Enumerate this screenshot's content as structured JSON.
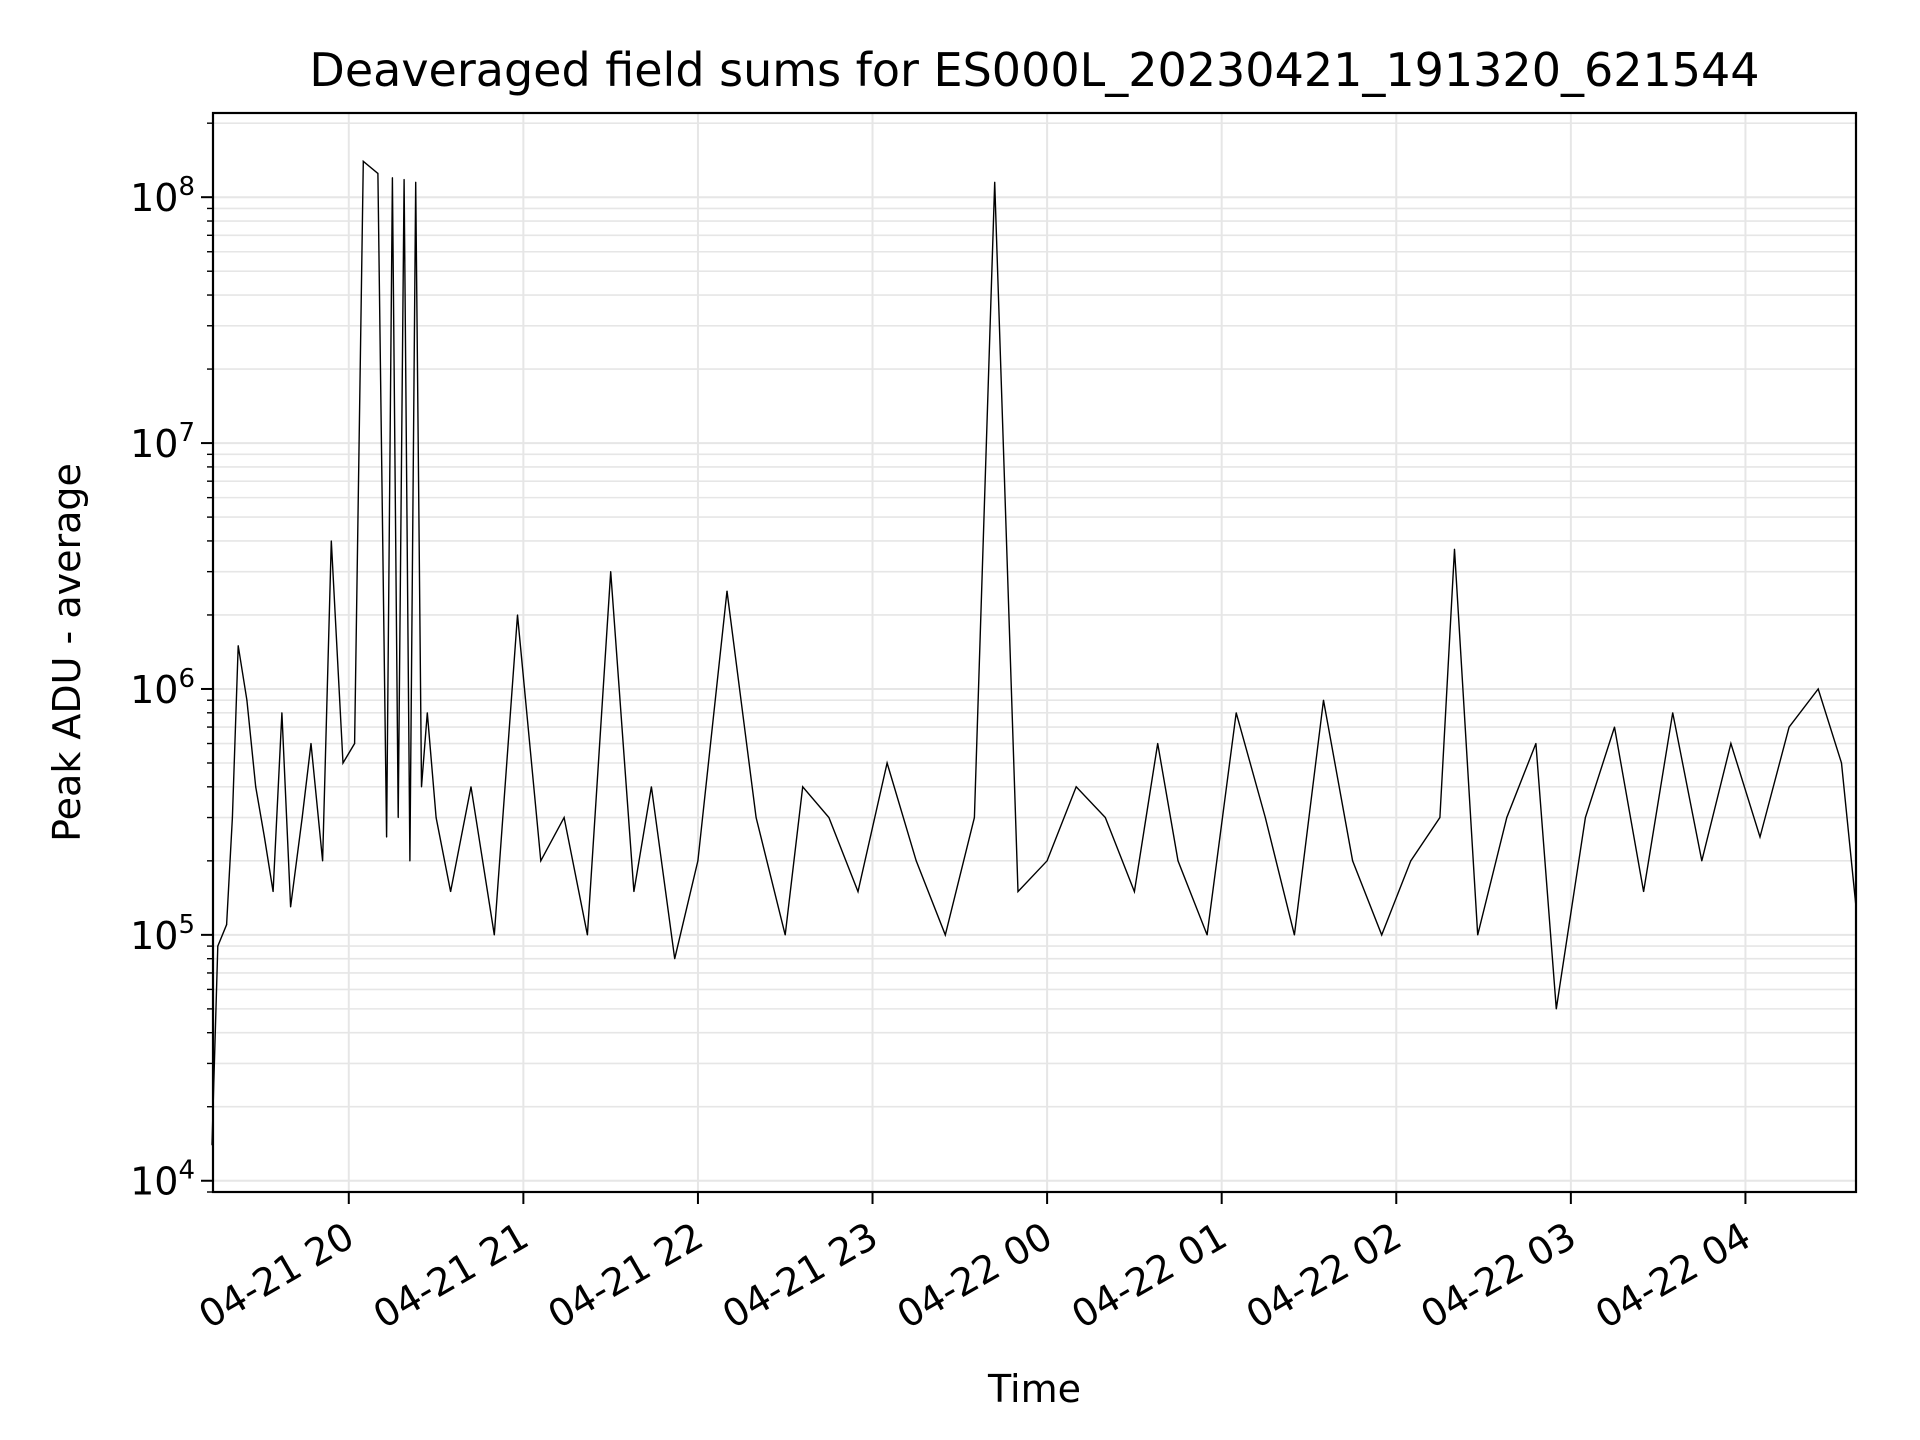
{
  "chart_data": {
    "type": "line",
    "title": "Deaveraged field sums for ES000L_20230421_191320_621544",
    "xlabel": "Time",
    "ylabel": "Peak ADU - average",
    "yscale": "log",
    "ylim": [
      9000,
      220000000
    ],
    "xlim": [
      "2023-04-21 19:13:20",
      "2023-04-22 04:38:00"
    ],
    "grid": true,
    "line_color": "#000000",
    "grid_color": "#e6e6e6",
    "x_ticks": [
      {
        "value": "2023-04-21 20:00",
        "label": "04-21 20"
      },
      {
        "value": "2023-04-21 21:00",
        "label": "04-21 21"
      },
      {
        "value": "2023-04-21 22:00",
        "label": "04-21 22"
      },
      {
        "value": "2023-04-21 23:00",
        "label": "04-21 23"
      },
      {
        "value": "2023-04-22 00:00",
        "label": "04-22 00"
      },
      {
        "value": "2023-04-22 01:00",
        "label": "04-22 01"
      },
      {
        "value": "2023-04-22 02:00",
        "label": "04-22 02"
      },
      {
        "value": "2023-04-22 03:00",
        "label": "04-22 03"
      },
      {
        "value": "2023-04-22 04:00",
        "label": "04-22 04"
      }
    ],
    "y_ticks": [
      {
        "value": 10000,
        "base": "10",
        "exp": "4"
      },
      {
        "value": 100000,
        "base": "10",
        "exp": "5"
      },
      {
        "value": 1000000,
        "base": "10",
        "exp": "6"
      },
      {
        "value": 10000000,
        "base": "10",
        "exp": "7"
      },
      {
        "value": 100000000,
        "base": "10",
        "exp": "8"
      }
    ],
    "series": [
      {
        "x": [
          "2023-04-21 19:13",
          "2023-04-21 19:15",
          "2023-04-21 19:18",
          "2023-04-21 19:20",
          "2023-04-21 19:22",
          "2023-04-21 19:25",
          "2023-04-21 19:28",
          "2023-04-21 19:31",
          "2023-04-21 19:34",
          "2023-04-21 19:37",
          "2023-04-21 19:40",
          "2023-04-21 19:44",
          "2023-04-21 19:47",
          "2023-04-21 19:51",
          "2023-04-21 19:54",
          "2023-04-21 19:58",
          "2023-04-21 20:02",
          "2023-04-21 20:05",
          "2023-04-21 20:10",
          "2023-04-21 20:13",
          "2023-04-21 20:15",
          "2023-04-21 20:17",
          "2023-04-21 20:19",
          "2023-04-21 20:21",
          "2023-04-21 20:23",
          "2023-04-21 20:25",
          "2023-04-21 20:27",
          "2023-04-21 20:30",
          "2023-04-21 20:35",
          "2023-04-21 20:42",
          "2023-04-21 20:50",
          "2023-04-21 20:58",
          "2023-04-21 21:06",
          "2023-04-21 21:14",
          "2023-04-21 21:22",
          "2023-04-21 21:30",
          "2023-04-21 21:38",
          "2023-04-21 21:44",
          "2023-04-21 21:52",
          "2023-04-21 22:00",
          "2023-04-21 22:10",
          "2023-04-21 22:20",
          "2023-04-21 22:30",
          "2023-04-21 22:36",
          "2023-04-21 22:45",
          "2023-04-21 22:55",
          "2023-04-21 23:05",
          "2023-04-21 23:15",
          "2023-04-21 23:25",
          "2023-04-21 23:35",
          "2023-04-21 23:42",
          "2023-04-21 23:50",
          "2023-04-22 00:00",
          "2023-04-22 00:10",
          "2023-04-22 00:20",
          "2023-04-22 00:30",
          "2023-04-22 00:38",
          "2023-04-22 00:45",
          "2023-04-22 00:55",
          "2023-04-22 01:05",
          "2023-04-22 01:15",
          "2023-04-22 01:25",
          "2023-04-22 01:35",
          "2023-04-22 01:45",
          "2023-04-22 01:55",
          "2023-04-22 02:05",
          "2023-04-22 02:15",
          "2023-04-22 02:20",
          "2023-04-22 02:28",
          "2023-04-22 02:38",
          "2023-04-22 02:48",
          "2023-04-22 02:55",
          "2023-04-22 03:05",
          "2023-04-22 03:15",
          "2023-04-22 03:25",
          "2023-04-22 03:35",
          "2023-04-22 03:45",
          "2023-04-22 03:55",
          "2023-04-22 04:05",
          "2023-04-22 04:15",
          "2023-04-22 04:25",
          "2023-04-22 04:33",
          "2023-04-22 04:38"
        ],
        "y": [
          14000,
          90000,
          110000,
          300000,
          1500000,
          900000,
          400000,
          250000,
          150000,
          800000,
          130000,
          300000,
          600000,
          200000,
          4000000,
          500000,
          600000,
          140000000,
          125000000,
          250000,
          120000000,
          300000,
          118000000,
          200000,
          115000000,
          400000,
          800000,
          300000,
          150000,
          400000,
          100000,
          2000000,
          200000,
          300000,
          100000,
          3000000,
          150000,
          400000,
          80000,
          200000,
          2500000,
          300000,
          100000,
          400000,
          300000,
          150000,
          500000,
          200000,
          100000,
          300000,
          115000000,
          150000,
          200000,
          400000,
          300000,
          150000,
          600000,
          200000,
          100000,
          800000,
          300000,
          100000,
          900000,
          200000,
          100000,
          200000,
          300000,
          3700000,
          100000,
          300000,
          600000,
          50000,
          300000,
          700000,
          150000,
          800000,
          200000,
          600000,
          250000,
          700000,
          1000000,
          500000,
          130000
        ]
      }
    ]
  }
}
